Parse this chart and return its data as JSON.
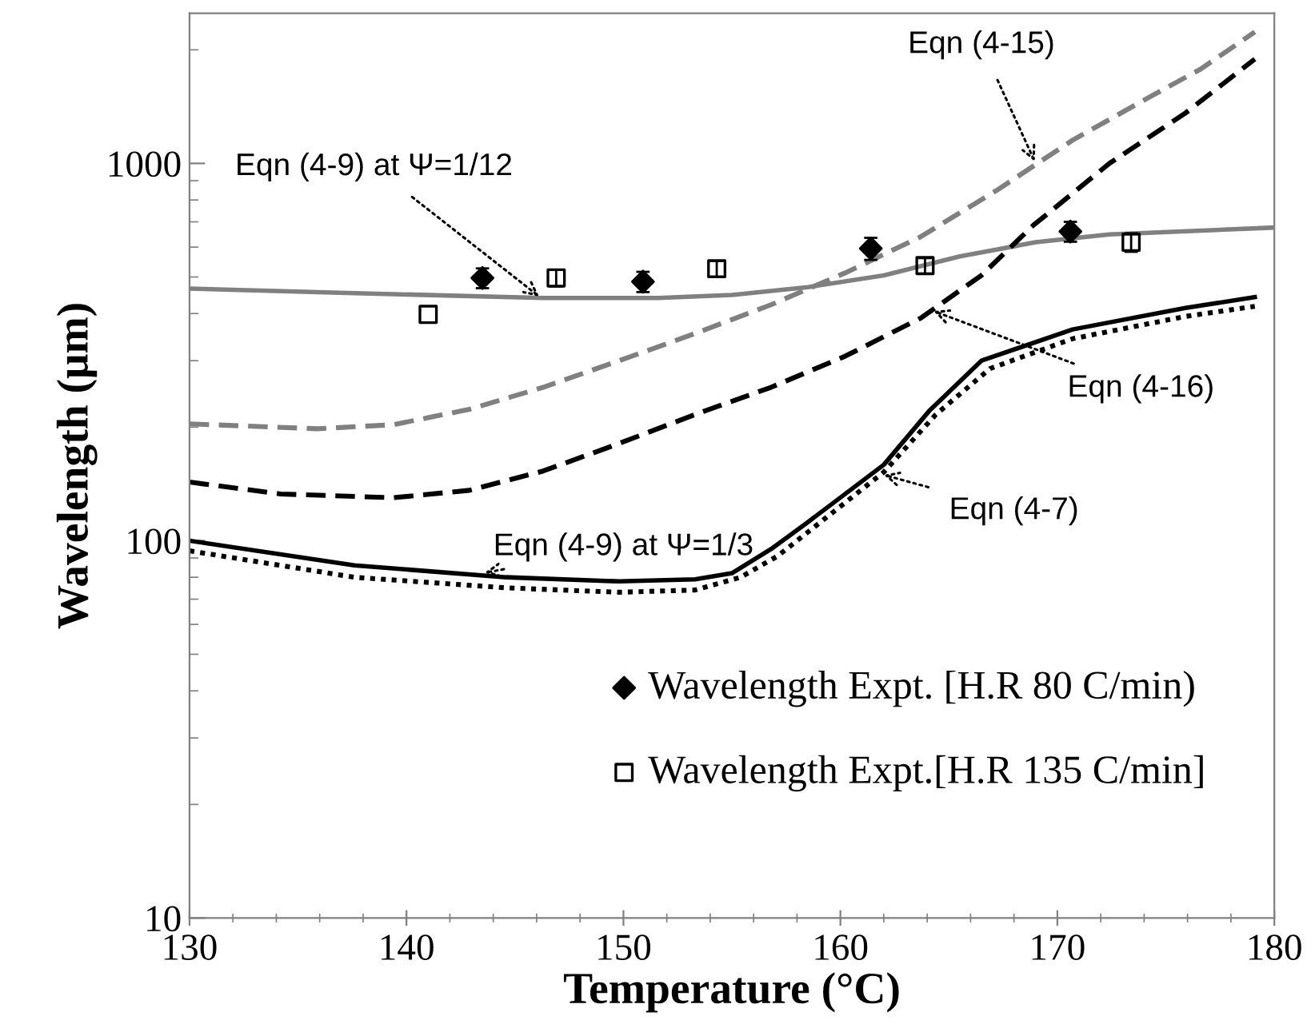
{
  "chart_data": {
    "type": "line",
    "xlabel": "Temperature (°C)",
    "ylabel": "Wavelength (μm)",
    "log": "y",
    "grid": false,
    "legend": "bottom right",
    "xlim": [
      130,
      180
    ],
    "xticks": [
      130,
      140,
      150,
      160,
      170,
      180
    ],
    "ylim": [
      10,
      2500
    ],
    "yticks": [
      10,
      100,
      1000
    ],
    "series": [
      {
        "color": "#808080",
        "line_style": "solid",
        "x": [
          130,
          137.6,
          146.3,
          151.6,
          155,
          158.5,
          162,
          165.5,
          169,
          172.4,
          180
        ],
        "values": [
          466,
          453,
          440,
          440,
          448,
          470,
          505,
          567,
          618,
          648,
          676
        ]
      },
      {
        "color": "#808080",
        "line_style": "dashed",
        "x": [
          130,
          135.9,
          139.4,
          142.9,
          146.3,
          149.8,
          153.3,
          156.8,
          160.2,
          163.7,
          167.2,
          170.7,
          174.2,
          176.6,
          179.1
        ],
        "values": [
          204,
          198,
          203,
          223,
          255,
          300,
          354,
          422,
          512,
          639,
          848,
          1152,
          1494,
          1778,
          2230
        ]
      },
      {
        "color": "#000000",
        "line_style": "dashed",
        "x": [
          130,
          134.2,
          139.4,
          142.9,
          146.3,
          149.8,
          153.3,
          156.8,
          160.2,
          163.7,
          166.5,
          168.9,
          172.4,
          175.9,
          179.1
        ],
        "values": [
          143,
          133,
          130,
          136,
          153,
          181,
          216,
          255,
          308,
          389,
          505,
          686,
          1000,
          1359,
          1890
        ]
      },
      {
        "color": "#000000",
        "line_style": "solid",
        "x": [
          130,
          137.6,
          144.6,
          149.8,
          153.3,
          155,
          156.8,
          158.5,
          162,
          164.1,
          166.5,
          170.7,
          175.9,
          179.1
        ],
        "values": [
          100,
          86,
          80,
          78,
          79,
          82,
          95,
          112,
          159,
          221,
          300,
          363,
          414,
          442
        ]
      },
      {
        "color": "#000000",
        "line_style": "dotted",
        "x": [
          130,
          137.6,
          144.6,
          149.8,
          153.3,
          155.4,
          157.1,
          162,
          164.4,
          166.9,
          170.7,
          175.9,
          179.1
        ],
        "values": [
          94,
          80,
          75,
          73,
          74,
          80,
          91,
          152,
          216,
          286,
          343,
          393,
          418
        ]
      },
      {
        "type": "scatter",
        "name": "Wavelength Expt. [H.R 80 C/min)",
        "color": "#000000",
        "marker": "diamond",
        "x": [
          143.5,
          150.9,
          161.4,
          170.6
        ],
        "values": [
          497,
          486,
          595,
          660
        ],
        "errors": [
          30,
          30,
          40,
          40
        ]
      },
      {
        "type": "scatter",
        "name": "Wavelength Expt.[H.R 135 C/min]",
        "color": "#000000",
        "marker": "square",
        "x": [
          141.0,
          146.9,
          154.3,
          163.9,
          173.4
        ],
        "values": [
          398,
          497,
          526,
          536,
          618
        ],
        "errors": [
          null,
          25,
          25,
          25,
          35
        ]
      }
    ],
    "annotations": [
      {
        "text": "Eqn (4-15)",
        "x": 169,
        "y": 1000
      },
      {
        "text": "Eqn (4-9) at Ψ=1/12",
        "x": 146.2,
        "y": 440
      },
      {
        "text": "Eqn (4-16)",
        "x": 164.2,
        "y": 408
      },
      {
        "text": "Eqn (4-9) at Ψ=1/3",
        "x": 143.5,
        "y": 82
      },
      {
        "text": "Eqn (4-7)",
        "x": 161.9,
        "y": 150
      }
    ]
  }
}
